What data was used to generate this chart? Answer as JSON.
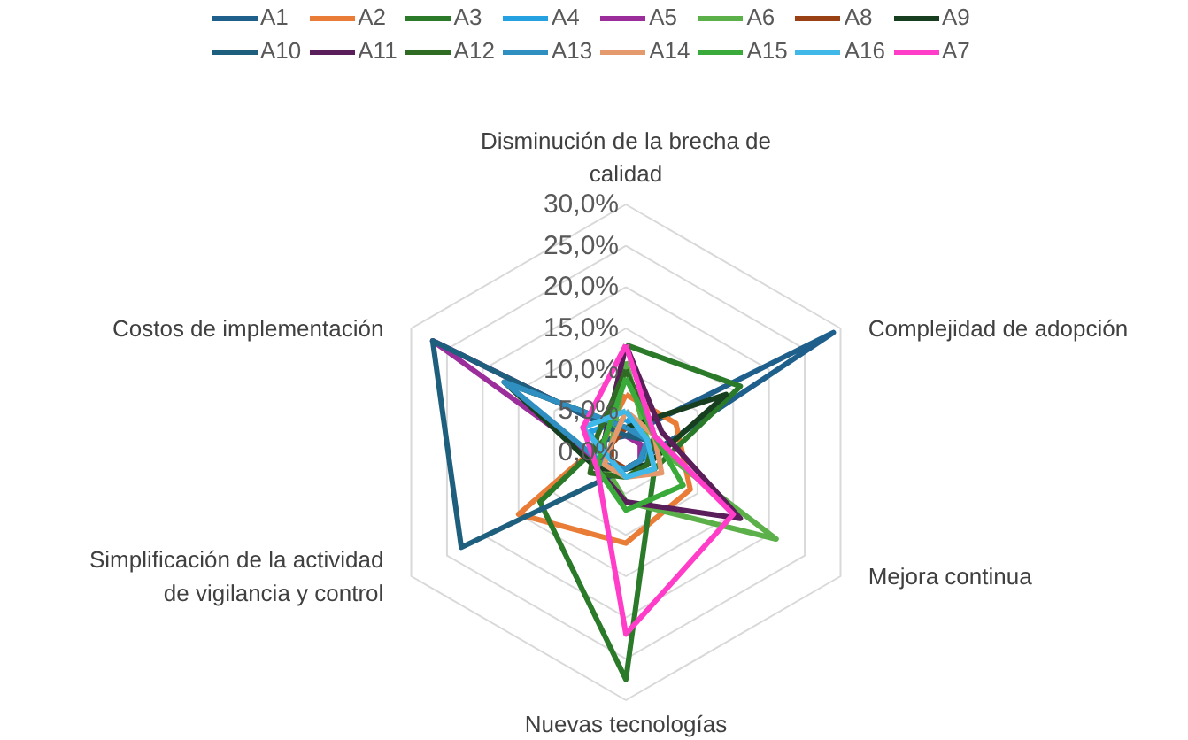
{
  "chart_data": {
    "type": "radar",
    "categories": [
      "Disminución de la brecha de calidad",
      "Complejidad de adopción",
      "Mejora continua",
      "Nuevas tecnologías",
      "Simplificación de la actividad de vigilancia y control",
      "Costos de implementación"
    ],
    "ylim": [
      0,
      30
    ],
    "yticks": [
      {
        "value": 0,
        "label": "0,0%"
      },
      {
        "value": 5,
        "label": "5,0%"
      },
      {
        "value": 10,
        "label": "10,0%"
      },
      {
        "value": 15,
        "label": "15,0%"
      },
      {
        "value": 20,
        "label": "20,0%"
      },
      {
        "value": 25,
        "label": "25,0%"
      },
      {
        "value": 30,
        "label": "30,0%"
      }
    ],
    "grid": true,
    "legend": "top",
    "series": [
      {
        "name": "A1",
        "color": "#1f5f8b",
        "values": [
          2,
          29,
          2,
          2,
          3,
          3
        ]
      },
      {
        "name": "A2",
        "color": "#e97c36",
        "values": [
          7,
          7,
          9,
          11,
          15,
          3
        ]
      },
      {
        "name": "A3",
        "color": "#2a7a2a",
        "values": [
          13,
          16,
          4,
          27.5,
          12,
          3
        ]
      },
      {
        "name": "A4",
        "color": "#25a0e0",
        "values": [
          4,
          3,
          3,
          2,
          3,
          5
        ]
      },
      {
        "name": "A5",
        "color": "#9c2e9c",
        "values": [
          2,
          2,
          2,
          2,
          3,
          27
        ]
      },
      {
        "name": "A6",
        "color": "#5cb04a",
        "values": [
          11,
          3,
          21,
          6,
          3,
          2
        ]
      },
      {
        "name": "A8",
        "color": "#9a4015",
        "values": [
          3,
          3,
          2,
          2,
          2,
          2
        ]
      },
      {
        "name": "A9",
        "color": "#173f1f",
        "values": [
          3,
          14,
          3,
          2,
          4,
          17
        ]
      },
      {
        "name": "A10",
        "color": "#1f5f7e",
        "values": [
          2,
          3,
          2,
          2,
          23,
          27
        ]
      },
      {
        "name": "A11",
        "color": "#5a1e5a",
        "values": [
          13,
          5,
          16,
          6,
          4,
          3
        ]
      },
      {
        "name": "A12",
        "color": "#2f6b22",
        "values": [
          10,
          4,
          3,
          3,
          5,
          4
        ]
      },
      {
        "name": "A13",
        "color": "#2f8fc0",
        "values": [
          3,
          3,
          2,
          2,
          3,
          17
        ]
      },
      {
        "name": "A14",
        "color": "#e49a6c",
        "values": [
          5,
          4,
          5,
          3,
          3,
          2
        ]
      },
      {
        "name": "A15",
        "color": "#3aaa3a",
        "values": [
          9,
          4,
          8,
          7,
          4,
          3
        ]
      },
      {
        "name": "A16",
        "color": "#40b8e8",
        "values": [
          5,
          3,
          4,
          3,
          2,
          6
        ]
      },
      {
        "name": "A7",
        "color": "#ff3dc8",
        "values": [
          13,
          4,
          15,
          22,
          4,
          6
        ]
      }
    ]
  }
}
